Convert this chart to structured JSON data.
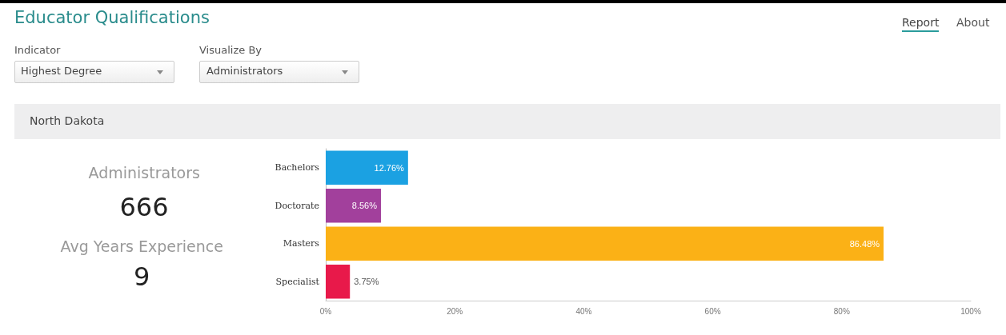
{
  "chart_data": {
    "type": "bar",
    "orientation": "horizontal",
    "title": "Educator Qualifications",
    "subtitle": "North Dakota",
    "categories": [
      "Bachelors",
      "Doctorate",
      "Masters",
      "Specialist"
    ],
    "values": [
      12.76,
      8.56,
      86.48,
      3.75
    ],
    "colors": [
      "#1ba1e2",
      "#a2409c",
      "#fbb116",
      "#e8194a"
    ],
    "value_labels": [
      "12.76%",
      "8.56%",
      "86.48%",
      "3.75%"
    ],
    "xlim": [
      0,
      100
    ],
    "xticks": [
      {
        "value": 0,
        "label": "0%"
      },
      {
        "value": 20,
        "label": "20%"
      },
      {
        "value": 40,
        "label": "40%"
      },
      {
        "value": 60,
        "label": "60%"
      },
      {
        "value": 80,
        "label": "80%"
      },
      {
        "value": 100,
        "label": "100%"
      }
    ],
    "annotations": [
      "Indicator",
      "Highest Degree",
      "Visualize By",
      "Administrators",
      "Report",
      "About",
      "Administrators",
      "666",
      "Avg Years Experience",
      "9"
    ]
  }
}
